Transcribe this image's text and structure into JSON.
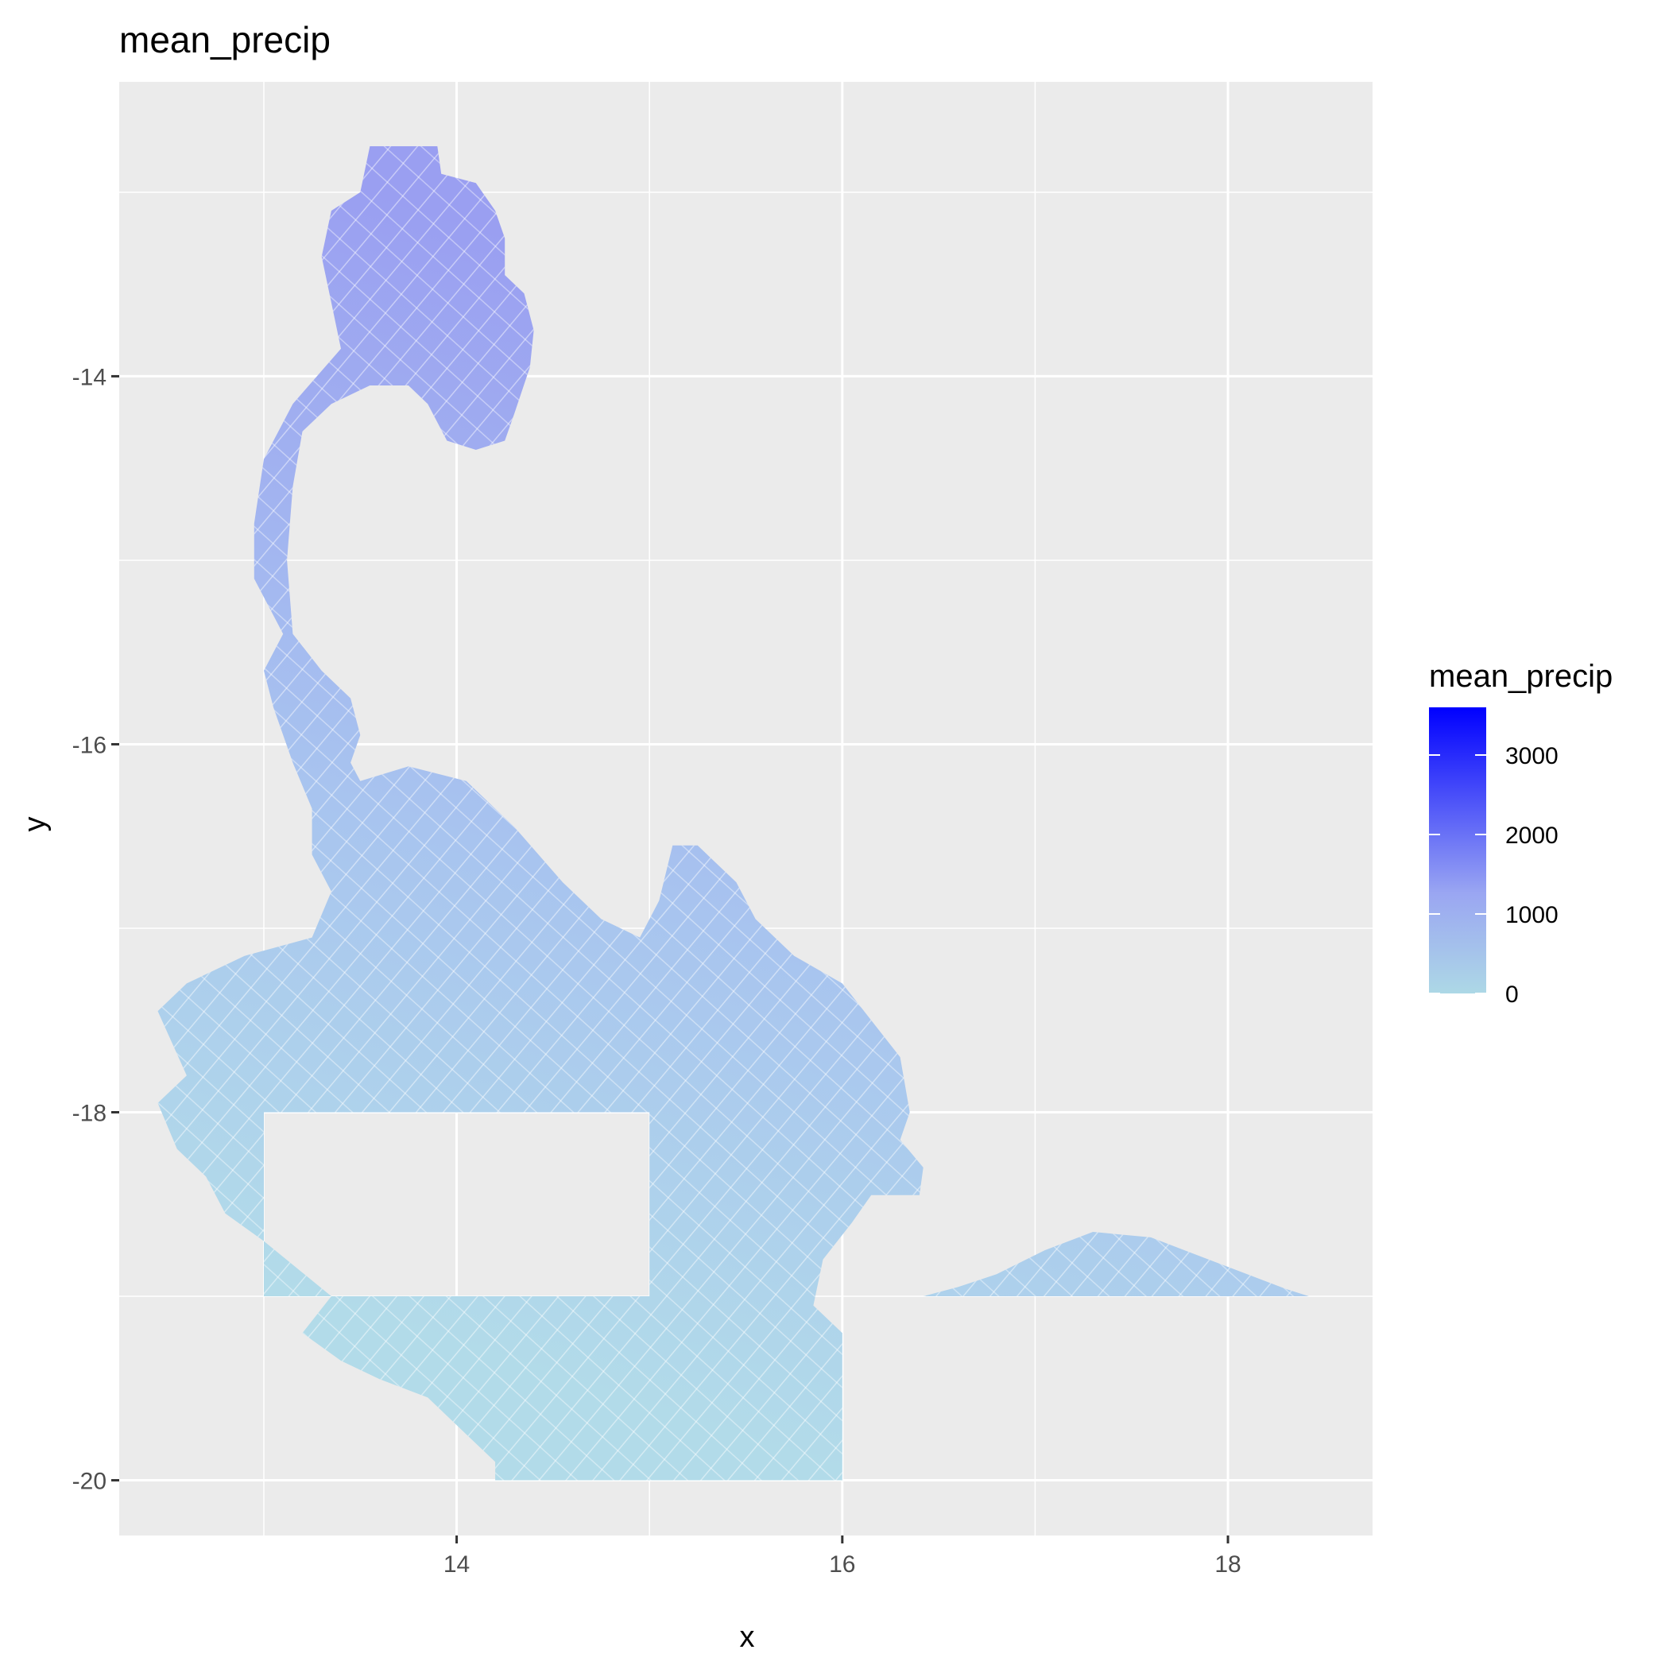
{
  "chart_data": {
    "type": "heatmap",
    "title": "mean_precip",
    "xlabel": "x",
    "ylabel": "y",
    "xlim": [
      12.25,
      18.75
    ],
    "ylim": [
      -20.3,
      -12.4
    ],
    "x_ticks": [
      14,
      16,
      18
    ],
    "y_ticks": [
      -14,
      -16,
      -18,
      -20
    ],
    "x_tick_labels": [
      "14",
      "16",
      "18"
    ],
    "y_tick_labels": [
      "-14",
      "-16",
      "-18",
      "-20"
    ],
    "grid": true,
    "panel_background": "#ebebeb",
    "grid_color": "#ffffff",
    "legend": {
      "title": "mean_precip",
      "placement": "right",
      "min": 0,
      "max": 3600,
      "low_color": "#add8e6",
      "high_color": "#0000ff",
      "breaks": [
        0,
        1000,
        2000,
        3000
      ],
      "labels": [
        "0",
        "1000",
        "2000",
        "3000"
      ]
    },
    "regions": [
      {
        "name": "main-region",
        "mean_precip_range": [
          150,
          1300
        ],
        "polygon": [
          [
            13.55,
            -12.75
          ],
          [
            13.9,
            -12.75
          ],
          [
            13.92,
            -12.9
          ],
          [
            14.1,
            -12.95
          ],
          [
            14.2,
            -13.1
          ],
          [
            14.25,
            -13.25
          ],
          [
            14.25,
            -13.45
          ],
          [
            14.35,
            -13.55
          ],
          [
            14.4,
            -13.75
          ],
          [
            14.38,
            -13.95
          ],
          [
            14.3,
            -14.2
          ],
          [
            14.25,
            -14.35
          ],
          [
            14.1,
            -14.4
          ],
          [
            13.95,
            -14.35
          ],
          [
            13.85,
            -14.15
          ],
          [
            13.75,
            -14.05
          ],
          [
            13.55,
            -14.05
          ],
          [
            13.35,
            -14.15
          ],
          [
            13.2,
            -14.3
          ],
          [
            13.15,
            -14.6
          ],
          [
            13.12,
            -15.0
          ],
          [
            13.15,
            -15.4
          ],
          [
            13.3,
            -15.6
          ],
          [
            13.45,
            -15.75
          ],
          [
            13.5,
            -15.95
          ],
          [
            13.45,
            -16.1
          ],
          [
            13.5,
            -16.2
          ],
          [
            13.75,
            -16.12
          ],
          [
            14.05,
            -16.2
          ],
          [
            14.3,
            -16.45
          ],
          [
            14.55,
            -16.75
          ],
          [
            14.75,
            -16.95
          ],
          [
            14.95,
            -17.05
          ],
          [
            15.05,
            -16.85
          ],
          [
            15.12,
            -16.55
          ],
          [
            15.25,
            -16.55
          ],
          [
            15.45,
            -16.75
          ],
          [
            15.55,
            -16.95
          ],
          [
            15.75,
            -17.15
          ],
          [
            16.0,
            -17.3
          ],
          [
            16.15,
            -17.5
          ],
          [
            16.3,
            -17.7
          ],
          [
            16.35,
            -18.0
          ],
          [
            16.3,
            -18.15
          ],
          [
            16.42,
            -18.3
          ],
          [
            16.4,
            -18.45
          ],
          [
            16.15,
            -18.45
          ],
          [
            16.05,
            -18.6
          ],
          [
            15.9,
            -18.8
          ],
          [
            15.85,
            -19.05
          ],
          [
            16.0,
            -19.2
          ],
          [
            16.0,
            -20.0
          ],
          [
            14.2,
            -20.0
          ],
          [
            14.2,
            -19.9
          ],
          [
            14.05,
            -19.75
          ],
          [
            13.85,
            -19.55
          ],
          [
            13.6,
            -19.45
          ],
          [
            13.4,
            -19.35
          ],
          [
            13.2,
            -19.2
          ],
          [
            13.35,
            -19.0
          ],
          [
            13.0,
            -18.7
          ],
          [
            12.8,
            -18.55
          ],
          [
            12.7,
            -18.35
          ],
          [
            12.55,
            -18.2
          ],
          [
            12.45,
            -17.95
          ],
          [
            12.6,
            -17.8
          ],
          [
            12.45,
            -17.45
          ],
          [
            12.6,
            -17.3
          ],
          [
            12.9,
            -17.15
          ],
          [
            13.25,
            -17.05
          ],
          [
            13.35,
            -16.8
          ],
          [
            13.25,
            -16.6
          ],
          [
            13.25,
            -16.35
          ],
          [
            13.15,
            -16.1
          ],
          [
            13.05,
            -15.8
          ],
          [
            13.0,
            -15.6
          ],
          [
            13.1,
            -15.4
          ],
          [
            12.95,
            -15.1
          ],
          [
            12.95,
            -14.8
          ],
          [
            13.0,
            -14.45
          ],
          [
            13.15,
            -14.15
          ],
          [
            13.4,
            -13.85
          ],
          [
            13.35,
            -13.6
          ],
          [
            13.3,
            -13.35
          ],
          [
            13.35,
            -13.1
          ],
          [
            13.5,
            -13.0
          ]
        ],
        "hole": [
          [
            13.0,
            -18.0
          ],
          [
            15.0,
            -18.0
          ],
          [
            15.0,
            -19.0
          ],
          [
            13.0,
            -19.0
          ]
        ]
      },
      {
        "name": "east-region",
        "mean_precip_range": [
          700,
          1100
        ],
        "polygon": [
          [
            16.42,
            -19.0
          ],
          [
            16.6,
            -18.95
          ],
          [
            16.8,
            -18.88
          ],
          [
            17.05,
            -18.75
          ],
          [
            17.3,
            -18.65
          ],
          [
            17.6,
            -18.68
          ],
          [
            17.85,
            -18.78
          ],
          [
            18.1,
            -18.88
          ],
          [
            18.3,
            -18.96
          ],
          [
            18.42,
            -19.0
          ]
        ]
      }
    ]
  }
}
